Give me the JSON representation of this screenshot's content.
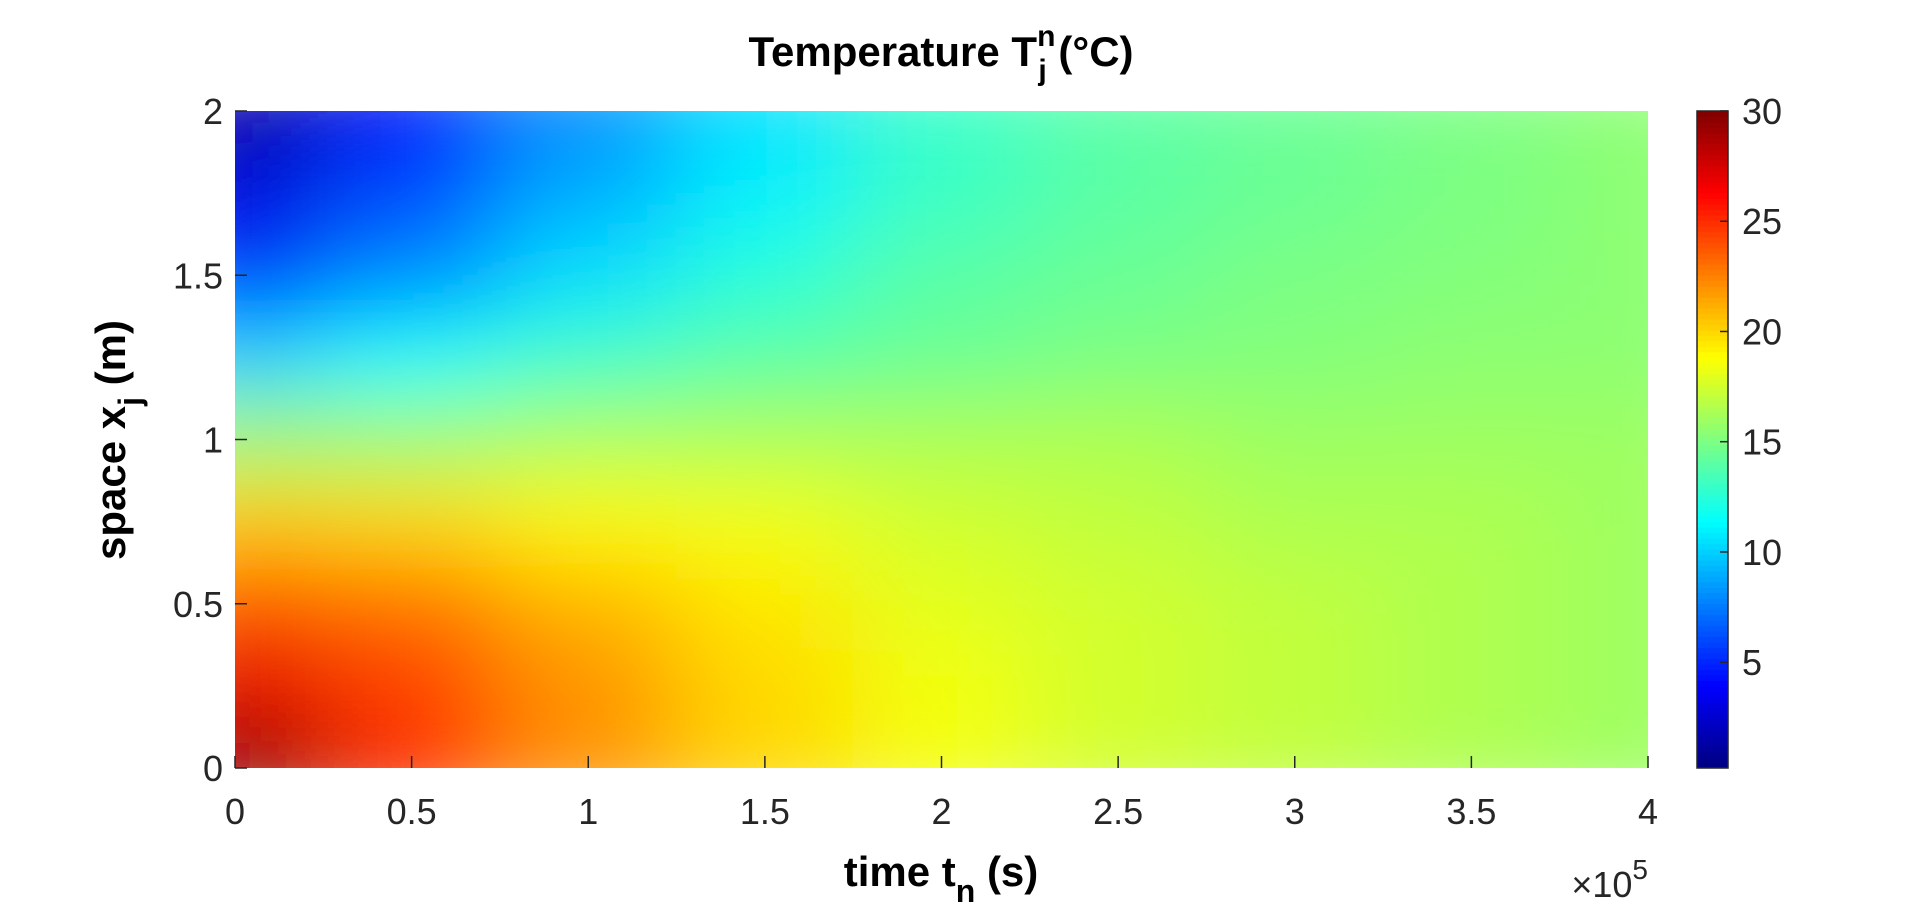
{
  "chart_data": {
    "type": "heatmap",
    "title": {
      "main": "Temperature T",
      "sub": "j",
      "sup": "n",
      "unit": " (°C)"
    },
    "x_label": {
      "main": "time t",
      "sub": "n",
      "unit": " (s)"
    },
    "y_label": {
      "main": "space x",
      "sub": "j",
      "unit": " (m)"
    },
    "x_multiplier": {
      "main": "×10",
      "sup": "5"
    },
    "colormap": "jet",
    "x": [
      0,
      50000,
      100000,
      150000,
      200000,
      250000,
      300000,
      350000,
      400000
    ],
    "y": [
      0,
      0.25,
      0.5,
      0.75,
      1,
      1.25,
      1.5,
      1.75,
      2
    ],
    "values": [
      [
        30,
        25,
        22,
        20,
        18.5,
        17.5,
        17,
        16.5,
        16
      ],
      [
        27,
        24.5,
        22,
        20,
        18.5,
        17.5,
        17,
        16.5,
        16
      ],
      [
        24,
        23,
        21,
        19.5,
        18,
        17.5,
        17,
        16.5,
        16
      ],
      [
        20.5,
        20,
        19,
        18.5,
        17.5,
        17,
        16.5,
        16.5,
        16
      ],
      [
        16,
        16,
        16.5,
        16.5,
        16.5,
        16.5,
        16,
        16,
        16
      ],
      [
        10,
        11.5,
        13,
        14,
        14.5,
        15,
        15.2,
        15.5,
        15.5
      ],
      [
        5,
        8,
        10.5,
        12.5,
        14,
        14.5,
        15,
        15.2,
        15.5
      ],
      [
        3,
        6,
        9,
        11,
        13,
        14,
        14.5,
        15,
        15.5
      ],
      [
        1,
        4,
        8,
        10.5,
        13,
        14,
        14.5,
        15,
        15.5
      ]
    ],
    "xlim": [
      0,
      400000
    ],
    "xticks": [
      0,
      {
        "value": 50000,
        "label": "0.5"
      },
      {
        "value": 100000,
        "label": "1"
      },
      {
        "value": 150000,
        "label": "1.5"
      },
      {
        "value": 200000,
        "label": "2"
      },
      {
        "value": 250000,
        "label": "2.5"
      },
      {
        "value": 300000,
        "label": "3"
      },
      {
        "value": 350000,
        "label": "3.5"
      },
      {
        "value": 400000,
        "label": "4"
      }
    ],
    "ylim": [
      0,
      2
    ],
    "yticks": [
      0,
      0.5,
      1,
      1.5,
      2
    ],
    "clim": [
      0.2,
      30
    ],
    "cticks": [
      5,
      10,
      15,
      20,
      25,
      30
    ]
  }
}
